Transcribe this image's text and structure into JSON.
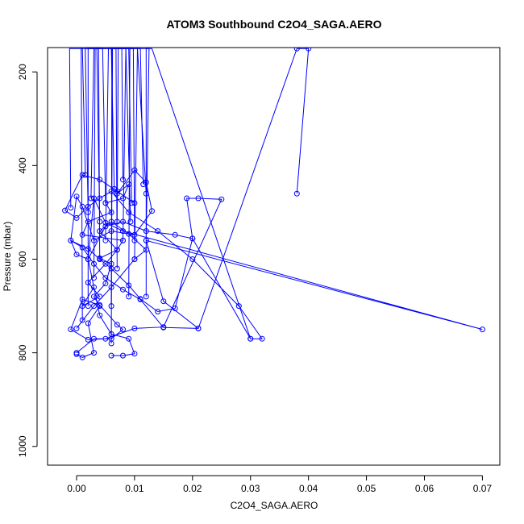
{
  "chart_data": {
    "type": "line",
    "title": "ATOM3 Southbound C2O4_SAGA.AERO",
    "xlabel": "C2O4_SAGA.AERO",
    "ylabel": "Pressure (mbar)",
    "xlim": [
      -0.005,
      0.073
    ],
    "ylim": [
      1040,
      148
    ],
    "y_reversed": true,
    "x_ticks": [
      0.0,
      0.01,
      0.02,
      0.03,
      0.04,
      0.05,
      0.06,
      0.07
    ],
    "x_tick_labels": [
      "0.00",
      "0.01",
      "0.02",
      "0.03",
      "0.04",
      "0.05",
      "0.06",
      "0.07"
    ],
    "y_ticks": [
      200,
      400,
      600,
      800,
      1000
    ],
    "y_tick_labels": [
      "200",
      "400",
      "600",
      "800",
      "1000"
    ],
    "grid": false,
    "legend": "none",
    "series": [
      {
        "color": "#0000ff",
        "x": [
          0.0,
          0.001,
          0.003,
          0.002,
          0.004,
          0.003,
          0.005,
          0.006,
          0.004,
          0.007,
          0.008,
          0.001,
          0.002,
          0.006,
          0.005,
          0.008,
          0.009,
          0.007,
          0.01,
          0.012,
          0.013,
          0.01,
          0.006,
          0.003,
          0.001,
          0.0,
          -0.001,
          0.002,
          0.004,
          0.006,
          0.009,
          0.011,
          0.014,
          0.017,
          0.02,
          0.019,
          0.021,
          0.025,
          0.015,
          0.01,
          0.005,
          0.002,
          -0.001,
          0.001,
          0.004,
          0.007,
          0.008,
          0.006,
          0.003,
          0.0
        ],
        "y": [
          803,
          810,
          800,
          737,
          700,
          680,
          652,
          610,
          598,
          580,
          560,
          548,
          520,
          500,
          480,
          470,
          440,
          460,
          410,
          436,
          497,
          548,
          540,
          560,
          488,
          466,
          560,
          578,
          600,
          620,
          656,
          685,
          712,
          705,
          556,
          470,
          470,
          472,
          745,
          748,
          770,
          772,
          750,
          686,
          698,
          740,
          750,
          770,
          770,
          800
        ]
      },
      {
        "color": "#0000ff",
        "x": [
          0.021,
          0.015,
          0.011,
          0.008,
          0.005,
          0.003,
          0.001,
          -0.001,
          0.0,
          0.002,
          0.005,
          0.008,
          0.012,
          0.017,
          0.02,
          0.03,
          0.032,
          0.028,
          0.02,
          0.014,
          0.009,
          0.006,
          0.004,
          0.002,
          0.0,
          -0.002,
          0.001,
          0.004,
          0.007,
          0.01
        ],
        "y": [
          748,
          746,
          686,
          665,
          640,
          610,
          575,
          560,
          590,
          600,
          530,
          520,
          540,
          548,
          556,
          770,
          770,
          700,
          600,
          540,
          500,
          455,
          470,
          488,
          512,
          496,
          420,
          430,
          455,
          480
        ]
      },
      {
        "color": "#0000ff",
        "x": [
          0.038,
          0.04,
          0.038,
          0.021,
          0.015,
          0.012,
          0.07,
          0.008,
          0.005,
          0.003,
          0.002,
          0.004,
          0.006,
          0.009,
          0.01,
          0.008,
          0.006
        ],
        "y": [
          460,
          150,
          150,
          748,
          690,
          560,
          750,
          540,
          522,
          470,
          600,
          720,
          760,
          770,
          802,
          806,
          806
        ]
      },
      {
        "color": "#0000ff",
        "x": [
          0.0,
          0.003,
          0.006,
          0.01,
          0.012,
          0.009,
          0.006,
          0.004,
          0.007,
          0.005,
          0.002,
          0.004,
          0.001,
          0.003
        ],
        "y": [
          748,
          700,
          660,
          600,
          580,
          546,
          520,
          540,
          580,
          610,
          650,
          680,
          700,
          660
        ]
      }
    ],
    "top_excursions": [
      {
        "x": [
          -0.001,
          -0.0012,
          0.001,
          0.0015
        ],
        "y": [
          490,
          150,
          150,
          420
        ]
      },
      {
        "x": [
          0.002,
          0.0015,
          0.003,
          0.0025
        ],
        "y": [
          500,
          150,
          150,
          470
        ]
      },
      {
        "x": [
          0.004,
          0.0035,
          0.0045,
          0.005
        ],
        "y": [
          520,
          150,
          150,
          480
        ]
      },
      {
        "x": [
          0.005,
          0.0055,
          0.006,
          0.0065
        ],
        "y": [
          560,
          150,
          150,
          450
        ]
      },
      {
        "x": [
          0.007,
          0.0072,
          0.0078,
          0.008
        ],
        "y": [
          520,
          150,
          150,
          430
        ]
      },
      {
        "x": [
          0.008,
          0.0085,
          0.009,
          0.0095
        ],
        "y": [
          560,
          150,
          150,
          480
        ]
      },
      {
        "x": [
          0.01,
          0.0105,
          0.011,
          0.0115
        ],
        "y": [
          600,
          150,
          150,
          440
        ]
      },
      {
        "x": [
          0.012,
          0.0125,
          0.012,
          0.012
        ],
        "y": [
          560,
          150,
          150,
          680
        ]
      },
      {
        "x": [
          0.003,
          0.0032,
          0.0038,
          0.004
        ],
        "y": [
          640,
          150,
          150,
          600
        ]
      },
      {
        "x": [
          0.006,
          0.0062,
          0.0068,
          0.007
        ],
        "y": [
          700,
          150,
          150,
          620
        ]
      },
      {
        "x": [
          0.009,
          0.0092,
          0.0098,
          0.01
        ],
        "y": [
          680,
          150,
          150,
          560
        ]
      },
      {
        "x": [
          0.002,
          0.002,
          0.0105,
          0.012
        ],
        "y": [
          700,
          150,
          150,
          460
        ]
      },
      {
        "x": [
          0.001,
          0.0008,
          0.0085,
          0.0093
        ],
        "y": [
          730,
          150,
          150,
          520
        ]
      },
      {
        "x": [
          0.006,
          0.0061,
          0.013,
          0.03
        ],
        "y": [
          780,
          150,
          150,
          770
        ]
      }
    ]
  }
}
